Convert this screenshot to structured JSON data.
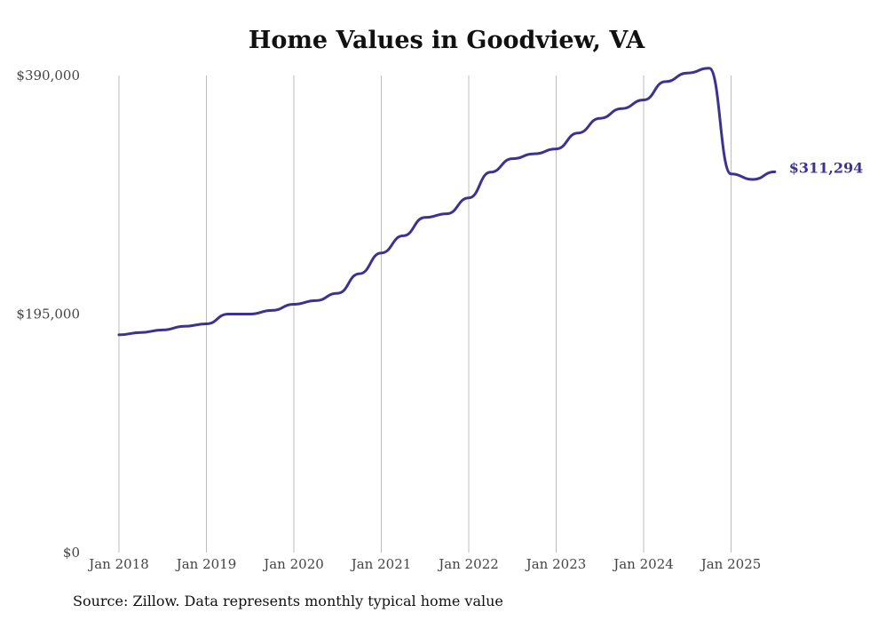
{
  "chart_data": {
    "type": "line",
    "title": "Home Values in Goodview, VA",
    "source": "Source: Zillow. Data represents monthly typical home value",
    "ylim": [
      0,
      390000
    ],
    "y_ticks": [
      {
        "value": 0,
        "label": "$0"
      },
      {
        "value": 195000,
        "label": "$195,000"
      },
      {
        "value": 390000,
        "label": "$390,000"
      }
    ],
    "x_ticks": [
      {
        "value": "2018-01",
        "label": "Jan 2018"
      },
      {
        "value": "2019-01",
        "label": "Jan 2019"
      },
      {
        "value": "2020-01",
        "label": "Jan 2020"
      },
      {
        "value": "2021-01",
        "label": "Jan 2021"
      },
      {
        "value": "2022-01",
        "label": "Jan 2022"
      },
      {
        "value": "2023-01",
        "label": "Jan 2023"
      },
      {
        "value": "2024-01",
        "label": "Jan 2024"
      },
      {
        "value": "2025-01",
        "label": "Jan 2025"
      }
    ],
    "vertical_gridlines": true,
    "line_color": "#3c3391",
    "end_label": "$311,294",
    "series": [
      {
        "x": [
          "2018-01",
          "2018-04",
          "2018-07",
          "2018-10",
          "2019-01",
          "2019-04",
          "2019-07",
          "2019-10",
          "2020-01",
          "2020-04",
          "2020-07",
          "2020-10",
          "2021-01",
          "2021-04",
          "2021-07",
          "2021-10",
          "2022-01",
          "2022-04",
          "2022-07",
          "2022-10",
          "2023-01",
          "2023-04",
          "2023-07",
          "2023-10",
          "2024-01",
          "2024-04",
          "2024-07",
          "2024-10",
          "2025-01",
          "2025-04",
          "2025-07"
        ],
        "values": [
          178000,
          180000,
          182000,
          185000,
          187000,
          195000,
          195000,
          198000,
          203000,
          206000,
          212000,
          228000,
          245000,
          259000,
          274000,
          277000,
          290000,
          311000,
          322000,
          326000,
          330000,
          343000,
          355000,
          363000,
          370000,
          385000,
          392000,
          396000,
          309500,
          305000,
          311294
        ]
      }
    ]
  }
}
